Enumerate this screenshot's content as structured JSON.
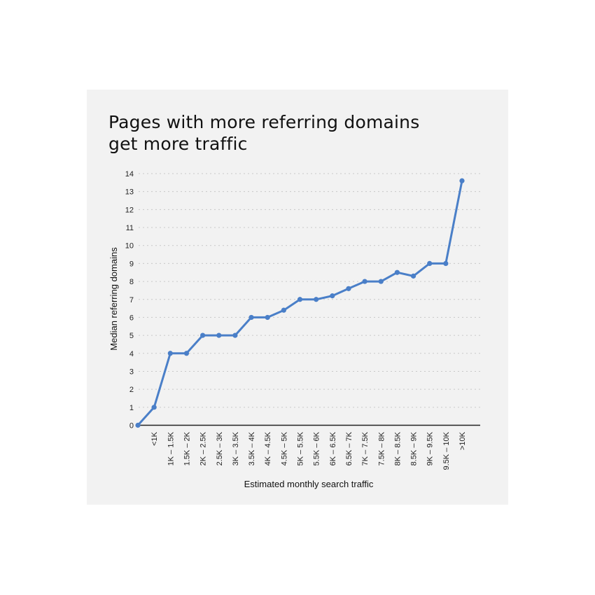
{
  "colors": {
    "background": "#f2f2f2",
    "line": "#4a7fc8",
    "grid": "#c8c8c8",
    "axis": "#222222"
  },
  "chart_data": {
    "type": "line",
    "title_lines": [
      "Pages with more referring domains",
      "get more traffic"
    ],
    "xlabel": "Estimated monthly search traffic",
    "ylabel": "Median referring domains",
    "ylim": [
      0,
      14
    ],
    "yticks": [
      0,
      1,
      2,
      3,
      4,
      5,
      6,
      7,
      8,
      9,
      10,
      11,
      12,
      13,
      14
    ],
    "grid": "horizontal dotted",
    "categories": [
      "",
      "<1K",
      "1K – 1.5K",
      "1.5K – 2K",
      "2K – 2.5K",
      "2.5K – 3K",
      "3K – 3.5K",
      "3.5K – 4K",
      "4K – 4.5K",
      "4.5K – 5K",
      "5K – 5.5K",
      "5.5K – 6K",
      "6K – 6.5K",
      "6.5K – 7K",
      "7K – 7.5K",
      "7.5K – 8K",
      "8K – 8.5K",
      "8.5K – 9K",
      "9K – 9.5K",
      "9.5K – 10K",
      ">10K"
    ],
    "values": [
      0,
      1,
      4,
      4,
      5,
      5,
      5,
      6,
      6,
      6.4,
      7,
      7,
      7.2,
      7.6,
      8,
      8,
      8.5,
      8.3,
      9,
      9,
      13.6
    ]
  }
}
